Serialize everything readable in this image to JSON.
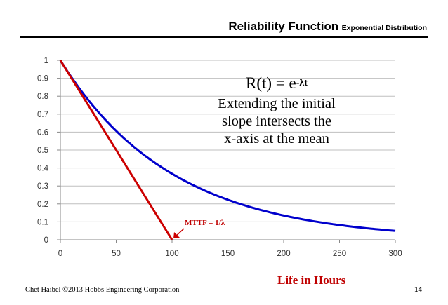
{
  "header": {
    "title": "Reliability Function",
    "subtitle": "Exponential Distribution"
  },
  "chart_data": {
    "type": "line",
    "title": "Reliability Function Exponential Distribution",
    "xlabel": "Life in Hours",
    "ylabel": "",
    "xlim": [
      0,
      300
    ],
    "ylim": [
      0,
      1
    ],
    "x_ticks": [
      0,
      50,
      100,
      150,
      200,
      250,
      300
    ],
    "y_ticks": [
      0,
      0.1,
      0.2,
      0.3,
      0.4,
      0.5,
      0.6,
      0.7,
      0.8,
      0.9,
      1
    ],
    "grid": "horizontal",
    "series": [
      {
        "name": "R(t) = e^-λt",
        "color": "#0000cc",
        "function": "exp(-t/100)",
        "x": [
          0,
          25,
          50,
          75,
          100,
          150,
          200,
          250,
          300
        ],
        "y": [
          1,
          0.779,
          0.607,
          0.472,
          0.368,
          0.223,
          0.135,
          0.082,
          0.05
        ]
      },
      {
        "name": "Initial slope",
        "color": "#cc0000",
        "x": [
          0,
          100
        ],
        "y": [
          1,
          0
        ]
      }
    ],
    "annotations": {
      "formula_base": "R(t) = e",
      "formula_exp": "-λt",
      "note_lines": [
        "Extending the initial",
        "slope intersects the",
        "x-axis at the mean"
      ],
      "mttf_label": "MTTF = 1/λ",
      "mttf_x": 100
    }
  },
  "footer": {
    "credit": "Chet Haibel  ©2013 Hobbs Engineering Corporation",
    "page": "14"
  }
}
